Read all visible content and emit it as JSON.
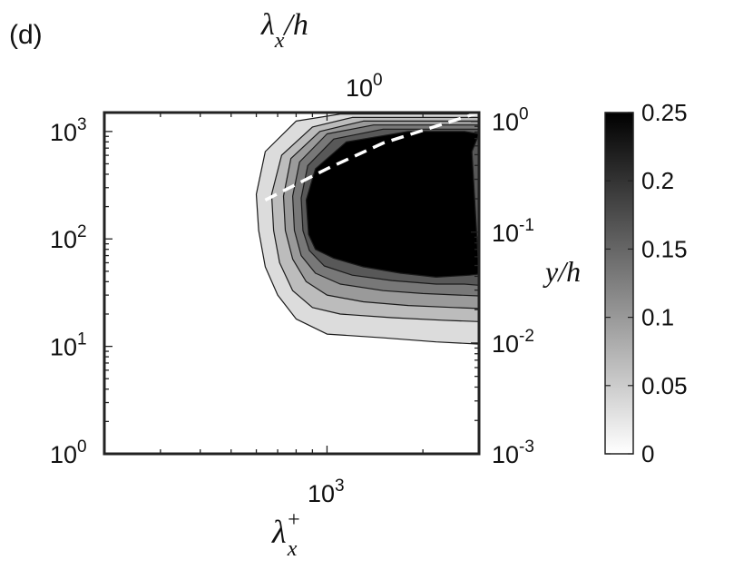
{
  "panel_label": "(d)",
  "colors": {
    "levels": [
      "#ffffff",
      "#dcdcdc",
      "#bcbcbc",
      "#9a9a9a",
      "#787878",
      "#585858",
      "#000000"
    ],
    "ridge_line": "#ffffff",
    "axes": "#222222"
  },
  "chart_data": {
    "type": "contour",
    "x_bottom": {
      "label_main": "λ",
      "label_sup": "+",
      "label_sub": "x",
      "scale": "log",
      "tick_label_base": "10",
      "tick_label_exp": "3",
      "tick_value": 1000,
      "range": [
        200,
        3000
      ]
    },
    "x_top": {
      "label_main": "λ",
      "label_sub": "x",
      "label_rest": "/h",
      "scale": "log",
      "tick_label_base": "10",
      "tick_label_exp": "0",
      "tick_value": 1,
      "range": [
        0.2,
        3
      ]
    },
    "y_left": {
      "label": "",
      "scale": "log",
      "range": [
        1,
        1500
      ],
      "ticks": [
        {
          "value": 1,
          "base": "10",
          "exp": "0"
        },
        {
          "value": 10,
          "base": "10",
          "exp": "1"
        },
        {
          "value": 100,
          "base": "10",
          "exp": "2"
        },
        {
          "value": 1000,
          "base": "10",
          "exp": "3"
        }
      ]
    },
    "y_right": {
      "label": "y/h",
      "scale": "log",
      "range": [
        0.001,
        1.2
      ],
      "ticks": [
        {
          "value": 0.001,
          "base": "10",
          "exp": "-3"
        },
        {
          "value": 0.01,
          "base": "10",
          "exp": "-2"
        },
        {
          "value": 0.1,
          "base": "10",
          "exp": "-1"
        },
        {
          "value": 1,
          "base": "10",
          "exp": "0"
        }
      ]
    },
    "colorbar": {
      "range": [
        0,
        0.25
      ],
      "tick_labels": [
        "0.25",
        "0.2",
        "0.15",
        "0.1",
        "0.05",
        "0"
      ],
      "tick_values": [
        0.25,
        0.2,
        0.15,
        0.1,
        0.05,
        0
      ]
    },
    "contour_levels": [
      0.03,
      0.07,
      0.1,
      0.14,
      0.17,
      0.21
    ],
    "contours": [
      {
        "level": 0.03,
        "points": [
          [
            3000,
            1450
          ],
          [
            1100,
            1450
          ],
          [
            800,
            1250
          ],
          [
            640,
            650
          ],
          [
            600,
            260
          ],
          [
            610,
            120
          ],
          [
            640,
            55
          ],
          [
            700,
            30
          ],
          [
            800,
            18
          ],
          [
            1000,
            13
          ],
          [
            1500,
            12
          ],
          [
            2200,
            11
          ],
          [
            3000,
            10.5
          ]
        ]
      },
      {
        "level": 0.07,
        "points": [
          [
            3000,
            1350
          ],
          [
            1200,
            1350
          ],
          [
            900,
            1100
          ],
          [
            720,
            600
          ],
          [
            670,
            260
          ],
          [
            680,
            120
          ],
          [
            710,
            60
          ],
          [
            780,
            33
          ],
          [
            900,
            23
          ],
          [
            1100,
            20
          ],
          [
            1600,
            18.5
          ],
          [
            2300,
            17.5
          ],
          [
            3000,
            17
          ]
        ]
      },
      {
        "level": 0.1,
        "points": [
          [
            3000,
            1250
          ],
          [
            1300,
            1250
          ],
          [
            950,
            1000
          ],
          [
            770,
            560
          ],
          [
            730,
            250
          ],
          [
            740,
            120
          ],
          [
            780,
            65
          ],
          [
            860,
            40
          ],
          [
            1000,
            30
          ],
          [
            1300,
            26
          ],
          [
            1800,
            24
          ],
          [
            2500,
            23
          ],
          [
            3000,
            22.5
          ]
        ]
      },
      {
        "level": 0.14,
        "points": [
          [
            3000,
            1150
          ],
          [
            1400,
            1150
          ],
          [
            1000,
            950
          ],
          [
            820,
            520
          ],
          [
            780,
            250
          ],
          [
            790,
            120
          ],
          [
            830,
            70
          ],
          [
            920,
            48
          ],
          [
            1100,
            38
          ],
          [
            1500,
            33
          ],
          [
            2000,
            31
          ],
          [
            2600,
            30
          ],
          [
            3000,
            29.5
          ]
        ]
      },
      {
        "level": 0.17,
        "points": [
          [
            3000,
            1050
          ],
          [
            1500,
            1050
          ],
          [
            1050,
            850
          ],
          [
            870,
            480
          ],
          [
            830,
            240
          ],
          [
            840,
            120
          ],
          [
            880,
            78
          ],
          [
            980,
            56
          ],
          [
            1200,
            46
          ],
          [
            1600,
            41
          ],
          [
            2200,
            38
          ],
          [
            2700,
            38
          ],
          [
            3000,
            37
          ]
        ]
      },
      {
        "level": 0.21,
        "points": [
          [
            3000,
            950
          ],
          [
            2700,
            1000
          ],
          [
            1800,
            1000
          ],
          [
            1150,
            800
          ],
          [
            920,
            450
          ],
          [
            860,
            230
          ],
          [
            875,
            110
          ],
          [
            920,
            80
          ],
          [
            1050,
            66
          ],
          [
            1300,
            55
          ],
          [
            1700,
            48
          ],
          [
            2200,
            44
          ],
          [
            2800,
            46
          ],
          [
            3000,
            47
          ],
          [
            2850,
            650
          ]
        ]
      }
    ],
    "ridge_line": {
      "style": "dashed",
      "points": [
        [
          640,
          230
        ],
        [
          1000,
          450
        ],
        [
          1500,
          780
        ],
        [
          3000,
          1500
        ]
      ]
    }
  }
}
